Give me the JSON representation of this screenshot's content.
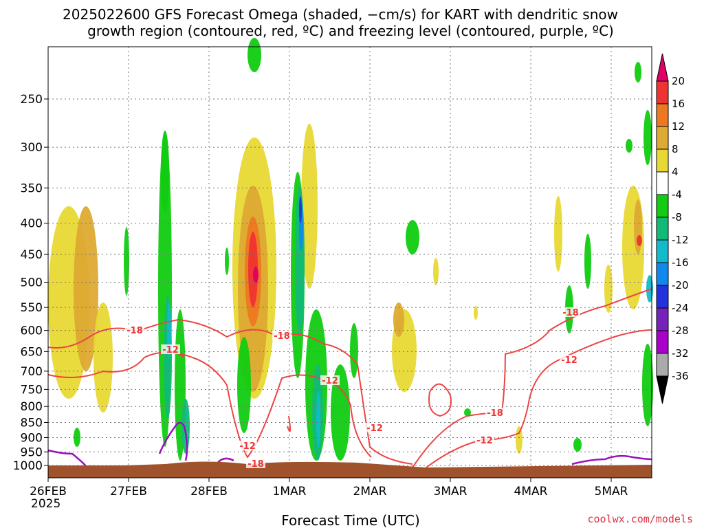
{
  "chart_data": {
    "type": "contour",
    "title_line1": "2025022600 GFS Forecast Omega (shaded, −cm/s) for KART with dendritic snow",
    "title_line2": "growth region (contoured, red, ºC) and freezing level (contoured, purple, ºC)",
    "xlabel": "Forecast Time (UTC)",
    "ylabel": "",
    "credit": "coolwx.com/models",
    "x_ticks": [
      "26FEB",
      "27FEB",
      "28FEB",
      "1MAR",
      "2MAR",
      "3MAR",
      "4MAR",
      "5MAR"
    ],
    "x_year": "2025",
    "x_range_days": [
      0,
      7.45
    ],
    "y_ticks": [
      "250",
      "300",
      "350",
      "400",
      "450",
      "500",
      "550",
      "600",
      "650",
      "700",
      "750",
      "800",
      "850",
      "900",
      "950",
      "1000"
    ],
    "y_values_hpa": [
      250,
      300,
      350,
      400,
      450,
      500,
      550,
      600,
      650,
      700,
      750,
      800,
      850,
      900,
      950,
      1000
    ],
    "y_axis": "pressure (hPa), inverted",
    "grid": true,
    "colorbar": {
      "levels": [
        "20",
        "16",
        "12",
        "8",
        "4",
        "-4",
        "-8",
        "-12",
        "-16",
        "-20",
        "-24",
        "-28",
        "-32",
        "-36"
      ],
      "level_values": [
        20,
        16,
        12,
        8,
        4,
        -4,
        -8,
        -12,
        -16,
        -20,
        -24,
        -28,
        -32,
        -36
      ],
      "colors": [
        "#dd0066",
        "#ee3333",
        "#ee7722",
        "#ddaa33",
        "#e8d833",
        "#ffffff",
        "#11cc11",
        "#11bb77",
        "#11bbcc",
        "#1188ee",
        "#2233dd",
        "#7722bb",
        "#aa00cc",
        "#aaaaaa",
        "#000000"
      ]
    },
    "contour_labels": {
      "red": [
        "-18",
        "-12",
        "-18",
        "-12",
        "-12",
        "-18",
        "-12",
        "-18",
        "-12",
        "-18",
        "-12"
      ],
      "purple": []
    },
    "series": [
      {
        "color": "#ee3333",
        "kind": "dendritic growth isotherm (−12 °C / −18 °C)"
      },
      {
        "color": "#9911bb",
        "kind": "freezing level (0 °C)"
      },
      {
        "color": "#a0522d",
        "kind": "ground / terrain below surface"
      }
    ]
  }
}
